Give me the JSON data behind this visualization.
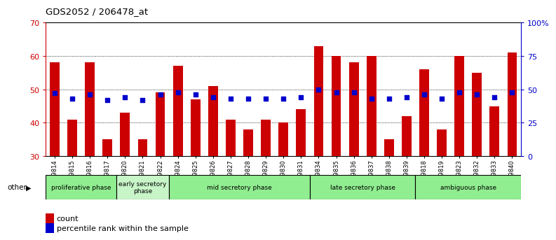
{
  "title": "GDS2052 / 206478_at",
  "samples": [
    "GSM109814",
    "GSM109815",
    "GSM109816",
    "GSM109817",
    "GSM109820",
    "GSM109821",
    "GSM109822",
    "GSM109824",
    "GSM109825",
    "GSM109826",
    "GSM109827",
    "GSM109828",
    "GSM109829",
    "GSM109830",
    "GSM109831",
    "GSM109834",
    "GSM109835",
    "GSM109836",
    "GSM109837",
    "GSM109838",
    "GSM109839",
    "GSM109818",
    "GSM109819",
    "GSM109823",
    "GSM109832",
    "GSM109833",
    "GSM109840"
  ],
  "counts": [
    58,
    41,
    58,
    35,
    43,
    35,
    49,
    57,
    47,
    51,
    41,
    38,
    41,
    40,
    44,
    63,
    60,
    58,
    60,
    35,
    42,
    56,
    38,
    60,
    55,
    45,
    61
  ],
  "percentiles": [
    47,
    43,
    46,
    42,
    44,
    42,
    46,
    48,
    46,
    44,
    43,
    43,
    43,
    43,
    44,
    50,
    48,
    48,
    43,
    43,
    44,
    46,
    43,
    48,
    46,
    44,
    48
  ],
  "phase_groups": [
    {
      "label": "proliferative phase",
      "count": 4,
      "color": "#90EE90"
    },
    {
      "label": "early secretory\nphase",
      "count": 3,
      "color": "#c8f5c8"
    },
    {
      "label": "mid secretory phase",
      "count": 8,
      "color": "#90EE90"
    },
    {
      "label": "late secretory phase",
      "count": 6,
      "color": "#90EE90"
    },
    {
      "label": "ambiguous phase",
      "count": 6,
      "color": "#90EE90"
    }
  ],
  "ylim_left": [
    30,
    70
  ],
  "ylim_right": [
    0,
    100
  ],
  "yticks_left": [
    30,
    40,
    50,
    60,
    70
  ],
  "yticks_right": [
    0,
    25,
    50,
    75,
    100
  ],
  "bar_color": "#CC0000",
  "dot_color": "#0000CC",
  "bg_color": "#ffffff",
  "grid_color": "#000000",
  "left_axis_color": "#CC0000",
  "right_axis_color": "#0000CC"
}
